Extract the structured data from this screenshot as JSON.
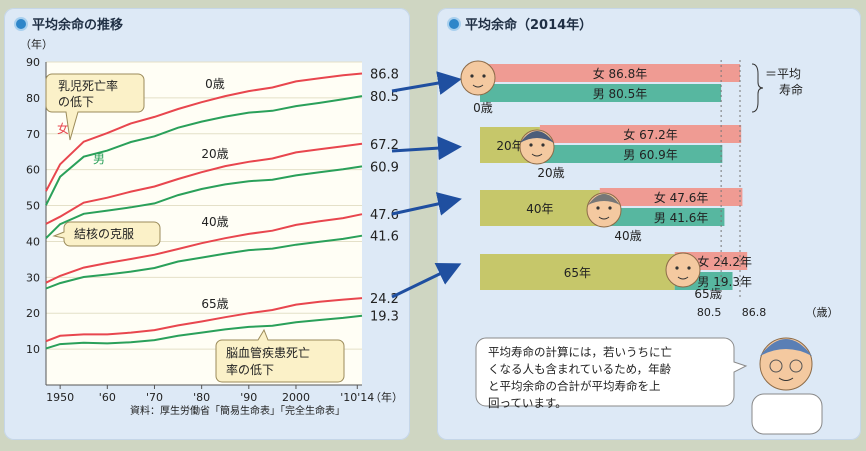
{
  "left_title": "平均余命の推移",
  "right_title": "平均余命（2014年）",
  "colors": {
    "female": "#e8464e",
    "male": "#2aa05a",
    "arrow": "#1f4fa0",
    "bar_female": "#ef9b93",
    "bar_male": "#57b7a0",
    "age_bg": "#c6c76a"
  },
  "chart_data": [
    {
      "type": "line",
      "yunit": "（年）",
      "xunit": "（年）",
      "ylim": [
        0,
        90
      ],
      "xlim": [
        1947,
        2014
      ],
      "yticks": [
        10,
        20,
        30,
        40,
        50,
        60,
        70,
        80,
        90
      ],
      "xtick_labels": [
        "1950",
        "'60",
        "'70",
        "'80",
        "'90",
        "2000",
        "'10'14"
      ],
      "xtick_values": [
        1950,
        1960,
        1970,
        1980,
        1990,
        2000,
        2013
      ],
      "grid": true,
      "series": [
        {
          "name": "女",
          "sex": "female",
          "age": "0歳",
          "x": [
            1947,
            1950,
            1955,
            1960,
            1965,
            1970,
            1975,
            1980,
            1985,
            1990,
            1995,
            2000,
            2005,
            2010,
            2014
          ],
          "y": [
            54.0,
            61.5,
            67.8,
            70.2,
            72.9,
            74.7,
            76.9,
            78.8,
            80.5,
            81.9,
            82.9,
            84.6,
            85.5,
            86.3,
            86.8
          ]
        },
        {
          "name": "男",
          "sex": "male",
          "age": "0歳",
          "x": [
            1947,
            1950,
            1955,
            1960,
            1965,
            1970,
            1975,
            1980,
            1985,
            1990,
            1995,
            2000,
            2005,
            2010,
            2014
          ],
          "y": [
            50.1,
            58.0,
            63.6,
            65.3,
            67.7,
            69.3,
            71.7,
            73.4,
            74.8,
            75.9,
            76.4,
            77.7,
            78.6,
            79.6,
            80.5
          ]
        },
        {
          "sex": "female",
          "age": "20歳",
          "x": [
            1947,
            1950,
            1955,
            1960,
            1965,
            1970,
            1975,
            1980,
            1985,
            1990,
            1995,
            2000,
            2005,
            2010,
            2014
          ],
          "y": [
            44.9,
            46.9,
            50.8,
            52.2,
            53.9,
            55.3,
            57.4,
            59.3,
            61.0,
            62.2,
            63.1,
            64.8,
            65.7,
            66.5,
            67.2
          ]
        },
        {
          "sex": "male",
          "age": "20歳",
          "x": [
            1947,
            1950,
            1955,
            1960,
            1965,
            1970,
            1975,
            1980,
            1985,
            1990,
            1995,
            2000,
            2005,
            2010,
            2014
          ],
          "y": [
            40.9,
            44.8,
            47.7,
            48.6,
            49.5,
            50.6,
            52.9,
            54.6,
            55.9,
            56.8,
            57.2,
            58.4,
            59.3,
            60.1,
            60.9
          ]
        },
        {
          "sex": "female",
          "age": "40歳",
          "x": [
            1947,
            1950,
            1955,
            1960,
            1965,
            1970,
            1975,
            1980,
            1985,
            1990,
            1995,
            2000,
            2005,
            2010,
            2014
          ],
          "y": [
            28.5,
            30.4,
            32.7,
            34.0,
            35.1,
            36.3,
            37.9,
            39.5,
            40.9,
            42.1,
            43.0,
            44.6,
            45.6,
            46.5,
            47.6
          ]
        },
        {
          "sex": "male",
          "age": "40歳",
          "x": [
            1947,
            1950,
            1955,
            1960,
            1965,
            1970,
            1975,
            1980,
            1985,
            1990,
            1995,
            2000,
            2005,
            2010,
            2014
          ],
          "y": [
            26.9,
            28.4,
            30.1,
            30.8,
            31.6,
            32.6,
            34.4,
            35.5,
            36.6,
            37.6,
            38.0,
            39.1,
            39.9,
            40.7,
            41.6
          ]
        },
        {
          "sex": "female",
          "age": "65歳",
          "x": [
            1947,
            1950,
            1955,
            1960,
            1965,
            1970,
            1975,
            1980,
            1985,
            1990,
            1995,
            2000,
            2005,
            2010,
            2014
          ],
          "y": [
            12.2,
            13.7,
            14.1,
            14.1,
            14.6,
            15.3,
            16.6,
            17.7,
            18.9,
            20.0,
            20.9,
            22.4,
            23.2,
            23.8,
            24.2
          ]
        },
        {
          "sex": "male",
          "age": "65歳",
          "x": [
            1947,
            1950,
            1955,
            1960,
            1965,
            1970,
            1975,
            1980,
            1985,
            1990,
            1995,
            2000,
            2005,
            2010,
            2014
          ],
          "y": [
            10.2,
            11.4,
            11.8,
            11.6,
            11.9,
            12.5,
            13.7,
            14.6,
            15.5,
            16.2,
            16.5,
            17.5,
            18.1,
            18.7,
            19.3
          ]
        }
      ],
      "end_labels": [
        "86.8",
        "80.5",
        "67.2",
        "60.9",
        "47.6",
        "41.6",
        "24.2",
        "19.3"
      ],
      "age_labels": [
        "0歳",
        "20歳",
        "40歳",
        "65歳"
      ],
      "sex_labels": [
        "女",
        "男"
      ],
      "annotations": [
        "乳児死亡率",
        "の低下",
        "結核の克服",
        "脳血管疾患死亡",
        "率の低下"
      ],
      "source": "資料：厚生労働省「簡易生命表」「完全生命表」"
    },
    {
      "type": "bar",
      "categories": [
        "0歳",
        "20年",
        "40年",
        "65年"
      ],
      "age_labels": [
        "0歳",
        "20歳",
        "40歳",
        "65歳"
      ],
      "age_sum": [
        0,
        20,
        40,
        65
      ],
      "female_labels": [
        "女 86.8年",
        "女 67.2年",
        "女 47.6年",
        "女 24.2年"
      ],
      "male_labels": [
        "男 80.5年",
        "男 60.9年",
        "男 41.6年",
        "男 19.3年"
      ],
      "female": [
        86.8,
        67.2,
        47.6,
        24.2
      ],
      "male": [
        80.5,
        60.9,
        41.6,
        19.3
      ],
      "xtick_labels": [
        "80.5",
        "86.8"
      ],
      "xtick_values": [
        80.5,
        86.8
      ],
      "xunit": "（歳）",
      "bracket_label": [
        "＝平均",
        "寿命"
      ]
    }
  ],
  "explanation": [
    "平均寿命の計算には，若いうちに亡",
    "くなる人も含まれているため，年齢",
    "と平均余命の合計が平均寿命を上",
    "回っています。"
  ]
}
